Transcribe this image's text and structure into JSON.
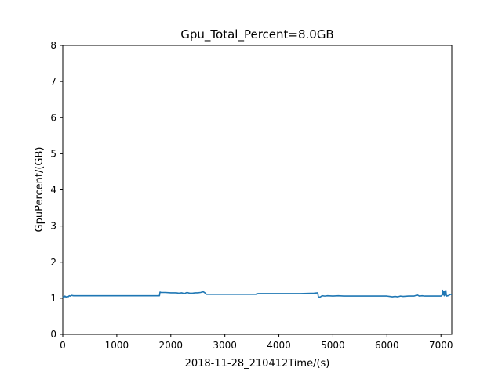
{
  "chart_data": {
    "type": "line",
    "title": "Gpu_Total_Percent=8.0GB",
    "xlabel": "2018-11-28_210412Time/(s)",
    "ylabel": "GpuPercent/(GB)",
    "xlim": [
      0,
      7200
    ],
    "ylim": [
      0,
      8
    ],
    "xticks": [
      0,
      1000,
      2000,
      3000,
      4000,
      5000,
      6000,
      7000
    ],
    "yticks": [
      0,
      1,
      2,
      3,
      4,
      5,
      6,
      7,
      8
    ],
    "grid": false,
    "legend": "none",
    "series": [
      {
        "color": "#1f77b4",
        "x": [
          0,
          20,
          40,
          60,
          80,
          100,
          120,
          140,
          160,
          200,
          400,
          800,
          1200,
          1600,
          1790,
          1800,
          1820,
          1900,
          2000,
          2100,
          2150,
          2200,
          2250,
          2300,
          2350,
          2400,
          2450,
          2500,
          2550,
          2600,
          2630,
          2660,
          2700,
          3000,
          3300,
          3590,
          3610,
          3800,
          4100,
          4400,
          4650,
          4720,
          4730,
          4760,
          4800,
          4850,
          4900,
          5000,
          5100,
          5200,
          5500,
          5800,
          6000,
          6050,
          6100,
          6150,
          6200,
          6250,
          6300,
          6400,
          6500,
          6560,
          6600,
          6650,
          6700,
          6800,
          6900,
          7000,
          7020,
          7030,
          7040,
          7050,
          7060,
          7070,
          7080,
          7090,
          7100,
          7110,
          7120,
          7130,
          7150,
          7170,
          7200
        ],
        "y": [
          1.05,
          1.02,
          1.06,
          1.03,
          1.05,
          1.04,
          1.07,
          1.06,
          1.08,
          1.07,
          1.07,
          1.07,
          1.07,
          1.07,
          1.07,
          1.17,
          1.16,
          1.16,
          1.15,
          1.15,
          1.14,
          1.15,
          1.13,
          1.16,
          1.14,
          1.14,
          1.15,
          1.15,
          1.16,
          1.18,
          1.15,
          1.11,
          1.11,
          1.11,
          1.11,
          1.11,
          1.13,
          1.13,
          1.13,
          1.13,
          1.14,
          1.15,
          1.04,
          1.03,
          1.07,
          1.06,
          1.07,
          1.06,
          1.07,
          1.06,
          1.06,
          1.06,
          1.06,
          1.05,
          1.04,
          1.05,
          1.04,
          1.06,
          1.05,
          1.06,
          1.06,
          1.09,
          1.06,
          1.07,
          1.06,
          1.06,
          1.06,
          1.06,
          1.08,
          1.22,
          1.1,
          1.18,
          1.07,
          1.2,
          1.09,
          1.22,
          1.08,
          1.06,
          1.07,
          1.07,
          1.08,
          1.11,
          1.1
        ]
      }
    ]
  }
}
